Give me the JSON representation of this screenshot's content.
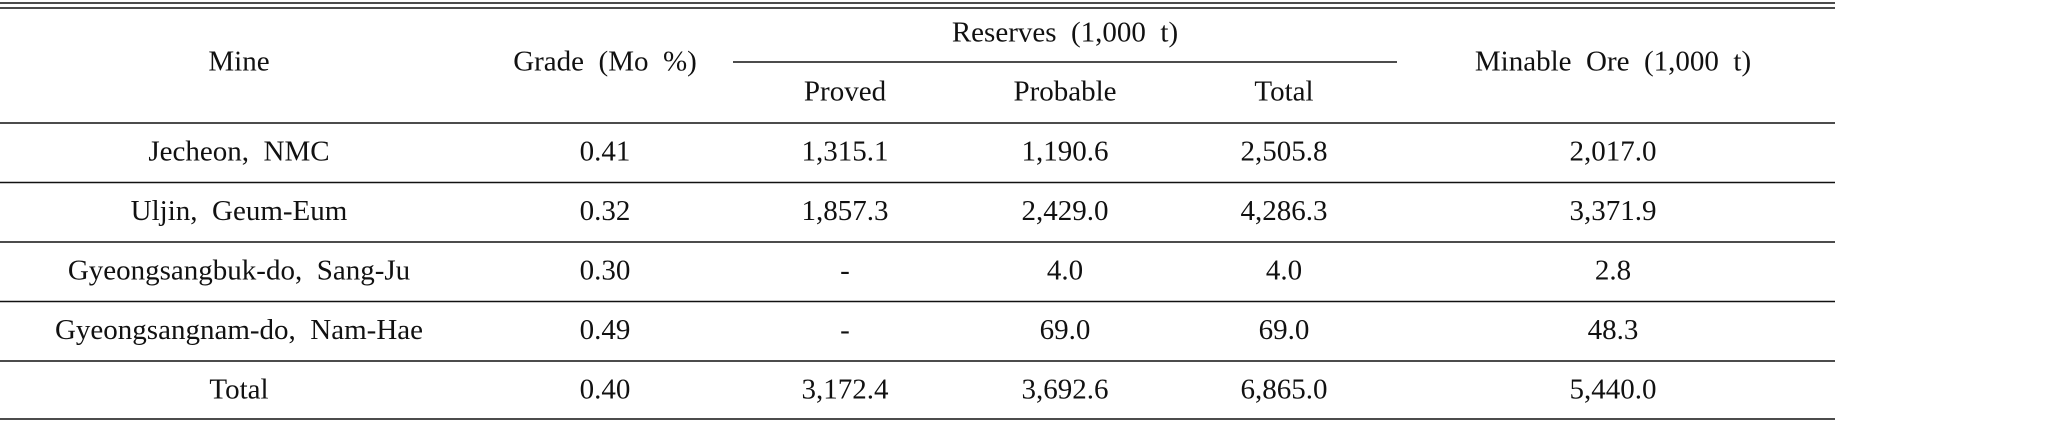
{
  "table": {
    "header": {
      "mine": "Mine",
      "grade": "Grade  (Mo  %)",
      "reserves": "Reserves  (1,000  t)",
      "subheaders": [
        "Proved",
        "Probable",
        "Total"
      ],
      "minable": "Minable  Ore  (1,000  t)"
    },
    "rows": [
      [
        "Jecheon,  NMC",
        "0.41",
        "1,315.1",
        "1,190.6",
        "2,505.8",
        "2,017.0"
      ],
      [
        "Uljin,  Geum-Eum",
        "0.32",
        "1,857.3",
        "2,429.0",
        "4,286.3",
        "3,371.9"
      ],
      [
        "Gyeongsangbuk-do,  Sang-Ju",
        "0.30",
        "-",
        "4.0",
        "4.0",
        "2.8"
      ],
      [
        "Gyeongsangnam-do,  Nam-Hae",
        "0.49",
        "-",
        "69.0",
        "69.0",
        "48.3"
      ],
      [
        "Total",
        "0.40",
        "3,172.4",
        "3,692.6",
        "6,865.0",
        "5,440.0"
      ]
    ]
  }
}
